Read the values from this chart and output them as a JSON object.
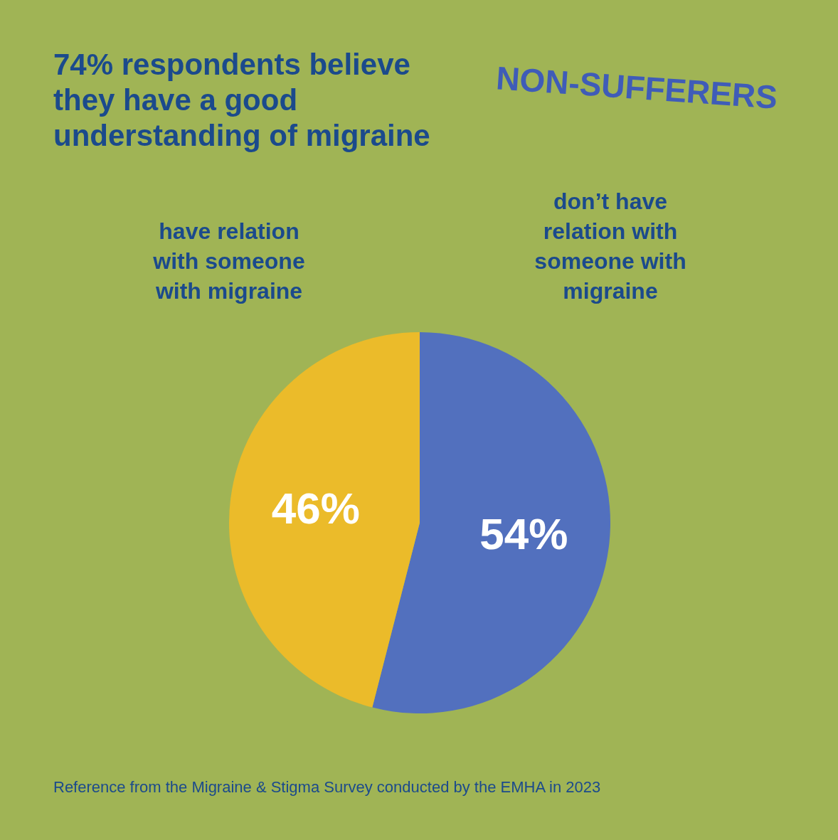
{
  "chart_data": {
    "type": "pie",
    "title": "74% respondents believe they have a good understanding of migraine",
    "subtitle": "NON-SUFFERERS",
    "categories": [
      "don’t have relation with someone with migraine",
      "have relation with someone with migraine"
    ],
    "values": [
      54,
      46
    ],
    "colors": [
      "#5270be",
      "#ebbb2a"
    ],
    "value_labels": [
      "54%",
      "46%"
    ],
    "annotations": [
      "Reference from the Migraine & Stigma Survey conducted by the EMHA in 2023"
    ]
  }
}
